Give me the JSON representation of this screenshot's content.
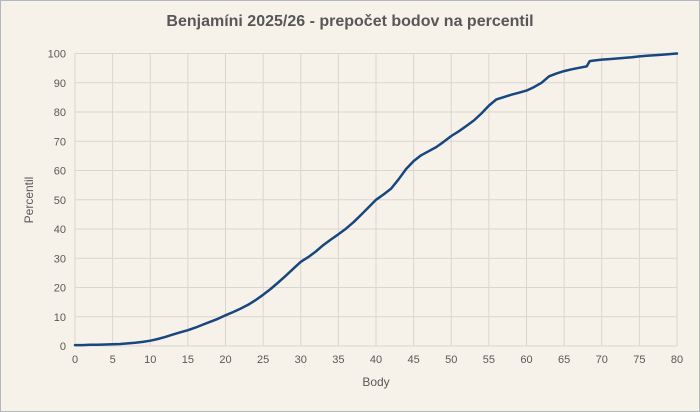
{
  "window": {
    "title": "Benjamíni 2025/26 - prepočet bodov na percentil"
  },
  "colors": {
    "background": "#f7f2e9",
    "border": "#b3b8c0",
    "grid": "#d9d6cf",
    "text": "#595959",
    "line": "#17477e"
  },
  "chart_data": {
    "type": "line",
    "title": "Benjamíni 2025/26 - prepočet bodov na percentil",
    "xlabel": "Body",
    "ylabel": "Percentil",
    "xlim": [
      0,
      80
    ],
    "ylim": [
      0,
      100
    ],
    "xtick_step": 5,
    "ytick_step": 10,
    "grid": true,
    "legend_position": "none",
    "line_color": "#17477e",
    "series": [
      {
        "name": "prepočet bodov na percentil",
        "x": [
          0,
          1,
          2,
          3,
          4,
          5,
          6,
          7,
          8,
          9,
          10,
          11,
          12,
          13,
          14,
          15,
          16,
          17,
          18,
          19,
          20,
          21,
          22,
          23,
          24,
          25,
          26,
          27,
          28,
          29,
          30,
          31,
          32,
          33,
          34,
          35,
          36,
          37,
          38,
          39,
          40,
          41,
          42,
          43,
          44,
          45,
          46,
          47,
          48,
          49,
          50,
          51,
          52,
          53,
          54,
          55,
          56,
          57,
          58,
          59,
          60,
          61,
          62,
          63,
          64,
          65,
          66,
          67,
          68,
          68.4,
          69,
          70,
          71,
          72,
          73,
          74,
          75,
          76,
          77,
          78,
          79,
          80
        ],
        "y": [
          0.3,
          0.3,
          0.4,
          0.4,
          0.5,
          0.6,
          0.7,
          0.9,
          1.1,
          1.4,
          1.8,
          2.4,
          3.1,
          3.9,
          4.7,
          5.4,
          6.3,
          7.3,
          8.3,
          9.3,
          10.5,
          11.6,
          12.8,
          14.1,
          15.7,
          17.5,
          19.5,
          21.7,
          24,
          26.4,
          28.8,
          30.4,
          32.3,
          34.5,
          36.4,
          38.2,
          40.1,
          42.3,
          44.8,
          47.4,
          50,
          51.8,
          53.8,
          57,
          60.5,
          63.2,
          65.2,
          66.6,
          68,
          69.8,
          71.8,
          73.4,
          75.2,
          77.1,
          79.5,
          82.2,
          84.3,
          85.1,
          85.9,
          86.6,
          87.3,
          88.5,
          90,
          92.2,
          93.2,
          94,
          94.6,
          95.1,
          95.6,
          97.4,
          97.6,
          97.9,
          98.1,
          98.3,
          98.5,
          98.7,
          99,
          99.2,
          99.4,
          99.6,
          99.8,
          100
        ]
      }
    ],
    "xticks": [
      0,
      5,
      10,
      15,
      20,
      25,
      30,
      35,
      40,
      45,
      50,
      55,
      60,
      65,
      70,
      75,
      80
    ],
    "yticks": [
      0,
      10,
      20,
      30,
      40,
      50,
      60,
      70,
      80,
      90,
      100
    ]
  }
}
